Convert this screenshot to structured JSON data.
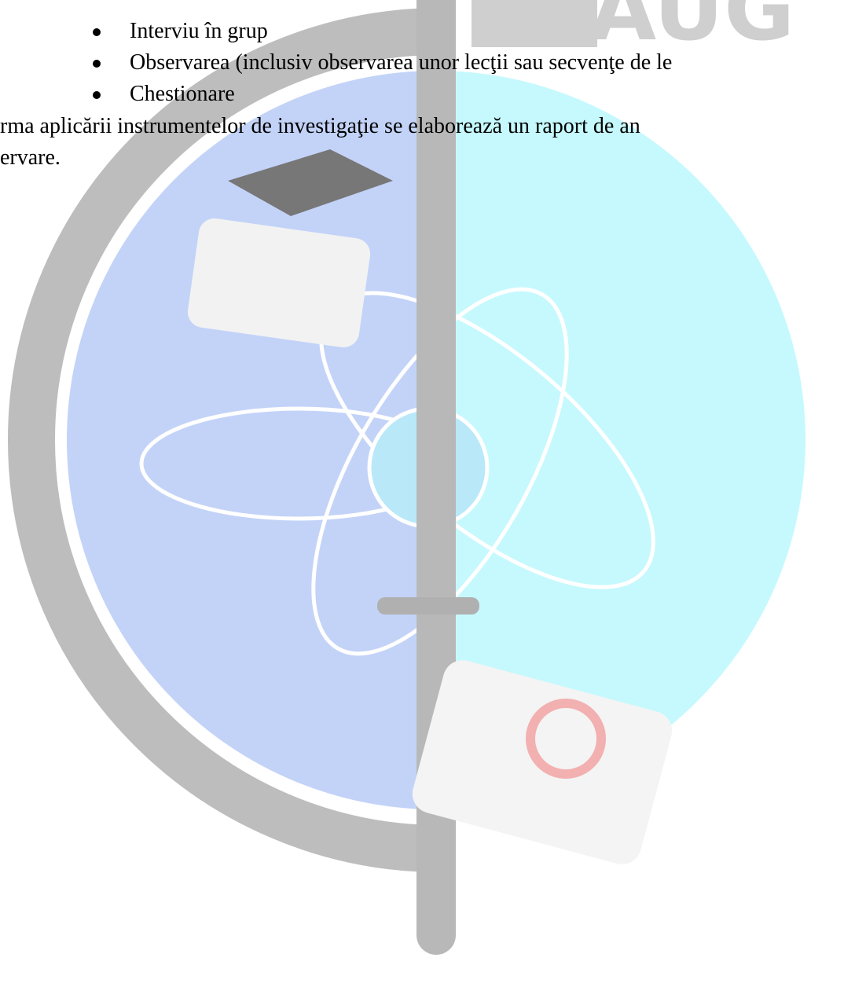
{
  "list": {
    "items": [
      "Interviu în grup",
      "Observarea (inclusiv observarea unor lecţii sau secvenţe de le",
      "Chestionare"
    ]
  },
  "paragraph": {
    "lines": [
      "rma aplicării instrumentelor de investigaţie se elaborează un raport de an",
      "ervare."
    ]
  }
}
